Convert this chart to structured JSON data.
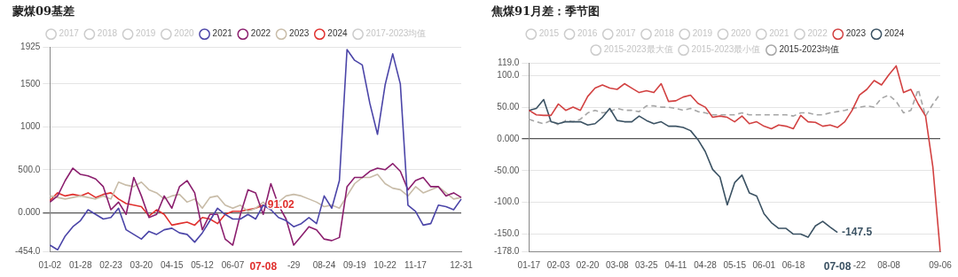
{
  "chart_data": [
    {
      "type": "line",
      "title": "蒙煤09基差",
      "legend": "top",
      "grid": "y",
      "marker": "none",
      "categories": [
        "01-02",
        null,
        null,
        null,
        "01-28",
        null,
        null,
        null,
        "02-23",
        null,
        null,
        null,
        "03-20",
        null,
        null,
        null,
        "04-15",
        null,
        null,
        null,
        "05-12",
        null,
        null,
        null,
        "06-07",
        null,
        null,
        null,
        "07-08",
        null,
        null,
        null,
        "-29",
        null,
        null,
        null,
        "08-24",
        null,
        null,
        null,
        "09-19",
        null,
        null,
        null,
        "10-22",
        null,
        null,
        null,
        "11-17",
        null,
        null,
        null,
        null,
        null,
        "12-31"
      ],
      "ylim": [
        -454,
        1925
      ],
      "yticks": [
        {
          "value": -454,
          "label": "-454.0"
        },
        {
          "value": 0,
          "label": "0.000"
        },
        {
          "value": 500,
          "label": "500.0"
        },
        1000,
        1500,
        1925
      ],
      "annotations": [
        {
          "text": "91.02",
          "x": "07-08",
          "y": 91.02
        }
      ],
      "series": [
        {
          "name": "2017",
          "color": "#cccccc",
          "values": [
            null,
            null,
            null,
            null,
            null,
            null,
            null,
            null,
            null,
            null,
            null,
            null,
            null,
            null,
            null,
            null,
            null,
            null,
            null,
            null,
            null,
            null,
            null,
            null,
            null,
            null,
            null,
            null,
            null,
            null,
            null,
            null,
            null,
            null,
            null,
            null,
            null,
            null,
            null,
            null,
            null,
            null,
            null,
            null,
            null,
            null,
            null,
            null,
            null,
            null,
            null,
            null,
            null,
            null,
            null
          ]
        },
        {
          "name": "2018",
          "color": "#cccccc",
          "values": [
            null,
            null,
            null,
            null,
            null,
            null,
            null,
            null,
            null,
            null,
            null,
            null,
            null,
            null,
            null,
            null,
            null,
            null,
            null,
            null,
            null,
            null,
            null,
            null,
            null,
            null,
            null,
            null,
            null,
            null,
            null,
            null,
            null,
            null,
            null,
            null,
            null,
            null,
            null,
            null,
            null,
            null,
            null,
            null,
            null,
            null,
            null,
            null,
            null,
            null,
            null,
            null,
            null,
            null,
            null
          ]
        },
        {
          "name": "2019",
          "color": "#cccccc",
          "values": [
            null,
            null,
            null,
            null,
            null,
            null,
            null,
            null,
            null,
            null,
            null,
            null,
            null,
            null,
            null,
            null,
            null,
            null,
            null,
            null,
            null,
            null,
            null,
            null,
            null,
            null,
            null,
            null,
            null,
            null,
            null,
            null,
            null,
            null,
            null,
            null,
            null,
            null,
            null,
            null,
            null,
            null,
            null,
            null,
            null,
            null,
            null,
            null,
            null,
            null,
            null,
            null,
            null,
            null,
            null
          ]
        },
        {
          "name": "2020",
          "color": "#cccccc",
          "values": [
            null,
            null,
            null,
            null,
            null,
            null,
            null,
            null,
            null,
            null,
            null,
            null,
            null,
            null,
            null,
            null,
            null,
            null,
            null,
            null,
            null,
            null,
            null,
            null,
            null,
            null,
            null,
            null,
            null,
            null,
            null,
            null,
            null,
            null,
            null,
            null,
            null,
            null,
            null,
            null,
            null,
            null,
            null,
            null,
            null,
            null,
            null,
            null,
            null,
            null,
            null,
            null,
            null,
            null,
            null
          ]
        },
        {
          "name": "2021",
          "color": "#4b45a8",
          "values": [
            -376,
            -430,
            -269,
            -161,
            -90,
            36,
            -18,
            -72,
            -54,
            54,
            -197,
            -251,
            -305,
            -215,
            -251,
            -197,
            -179,
            -233,
            -251,
            -341,
            -233,
            -90,
            54,
            -18,
            -72,
            -72,
            -18,
            -72,
            90,
            36,
            -54,
            -90,
            -161,
            -125,
            -54,
            -125,
            197,
            54,
            376,
            1900,
            1775,
            1721,
            1273,
            914,
            1488,
            1850,
            1500,
            90,
            18,
            -143,
            -125,
            90,
            72,
            36,
            161
          ]
        },
        {
          "name": "2022",
          "color": "#8b1f6e",
          "values": [
            125,
            197,
            376,
            520,
            448,
            430,
            394,
            305,
            36,
            125,
            -18,
            412,
            197,
            -54,
            -18,
            197,
            54,
            305,
            376,
            233,
            -197,
            -18,
            -18,
            -305,
            -376,
            -18,
            269,
            233,
            -18,
            340,
            90,
            -72,
            -376,
            -269,
            -161,
            -197,
            -305,
            -323,
            -287,
            305,
            412,
            412,
            484,
            520,
            502,
            574,
            484,
            269,
            376,
            412,
            305,
            305,
            197,
            233,
            179
          ]
        },
        {
          "name": "2023",
          "color": "#c8bca8",
          "values": [
            197,
            179,
            161,
            179,
            197,
            179,
            161,
            197,
            161,
            358,
            323,
            305,
            358,
            269,
            233,
            161,
            197,
            215,
            125,
            161,
            54,
            179,
            197,
            90,
            54,
            90,
            18,
            54,
            125,
            36,
            125,
            197,
            215,
            197,
            161,
            125,
            72,
            90,
            54,
            197,
            340,
            412,
            412,
            448,
            340,
            287,
            269,
            197,
            305,
            233,
            269,
            305,
            233,
            161,
            179
          ]
        },
        {
          "name": "2024",
          "color": "#e0302e",
          "values": [
            143,
            233,
            197,
            215,
            197,
            233,
            179,
            215,
            233,
            161,
            108,
            90,
            72,
            -36,
            36,
            -18,
            -143,
            -125,
            -108,
            -143,
            -54,
            -72,
            -125,
            -18,
            18,
            18,
            36,
            54,
            91.02,
            null,
            null,
            null,
            null,
            null,
            null,
            null,
            null,
            null,
            null,
            null,
            null,
            null,
            null,
            null,
            null,
            null,
            null,
            null,
            null,
            null,
            null,
            null,
            null,
            null,
            null
          ]
        },
        {
          "name": "2017-2023均值",
          "color": "#cccccc",
          "values": [
            null,
            null,
            null,
            null,
            null,
            null,
            null,
            null,
            null,
            null,
            null,
            null,
            null,
            null,
            null,
            null,
            null,
            null,
            null,
            null,
            null,
            null,
            null,
            null,
            null,
            null,
            null,
            null,
            null,
            null,
            null,
            null,
            null,
            null,
            null,
            null,
            null,
            null,
            null,
            null,
            null,
            null,
            null,
            null,
            null,
            null,
            null,
            null,
            null,
            null,
            null,
            null,
            null,
            null,
            null
          ]
        }
      ]
    },
    {
      "type": "line",
      "title": "焦煤91月差：季节图",
      "legend": "top",
      "grid": "y",
      "marker": "none",
      "categories": [
        "01-17",
        null,
        null,
        null,
        "02-03",
        null,
        null,
        null,
        "02-20",
        null,
        null,
        null,
        "03-08",
        null,
        null,
        null,
        "03-25",
        null,
        null,
        null,
        "04-11",
        null,
        null,
        null,
        "04-28",
        null,
        null,
        null,
        "05-15",
        null,
        null,
        null,
        "06-01",
        null,
        null,
        null,
        "06-18",
        null,
        null,
        null,
        null,
        null,
        "07-08",
        null,
        null,
        "-22",
        null,
        null,
        null,
        "08-08",
        null,
        null,
        null,
        null,
        null,
        null,
        "09-06"
      ],
      "ylim": [
        -178,
        119
      ],
      "yticks": [
        {
          "value": -178,
          "label": "-178.0"
        },
        {
          "value": -150,
          "label": "-150.0"
        },
        {
          "value": -100,
          "label": "-100.0"
        },
        {
          "value": -50,
          "label": "-50.00"
        },
        {
          "value": 0,
          "label": "0.000"
        },
        {
          "value": 50,
          "label": "50.00"
        },
        {
          "value": 100,
          "label": "100.0"
        },
        {
          "value": 119,
          "label": "119.0"
        }
      ],
      "annotations": [
        {
          "text": "-147.5",
          "x": "07-08",
          "y": -147.5
        }
      ],
      "series": [
        {
          "name": "2015",
          "color": "#cccccc",
          "values": [
            null,
            null,
            null,
            null,
            null,
            null,
            null,
            null,
            null,
            null,
            null,
            null,
            null,
            null,
            null,
            null,
            null,
            null,
            null,
            null,
            null,
            null,
            null,
            null,
            null,
            null,
            null,
            null,
            null,
            null,
            null,
            null,
            null,
            null,
            null,
            null,
            null,
            null,
            null,
            null,
            null,
            null,
            null,
            null,
            null,
            null,
            null,
            null,
            null,
            null,
            null,
            null,
            null,
            null,
            null,
            null,
            null
          ]
        },
        {
          "name": "2016",
          "color": "#cccccc",
          "values": [
            null,
            null,
            null,
            null,
            null,
            null,
            null,
            null,
            null,
            null,
            null,
            null,
            null,
            null,
            null,
            null,
            null,
            null,
            null,
            null,
            null,
            null,
            null,
            null,
            null,
            null,
            null,
            null,
            null,
            null,
            null,
            null,
            null,
            null,
            null,
            null,
            null,
            null,
            null,
            null,
            null,
            null,
            null,
            null,
            null,
            null,
            null,
            null,
            null,
            null,
            null,
            null,
            null,
            null,
            null,
            null,
            null
          ]
        },
        {
          "name": "2017",
          "color": "#cccccc",
          "values": [
            null,
            null,
            null,
            null,
            null,
            null,
            null,
            null,
            null,
            null,
            null,
            null,
            null,
            null,
            null,
            null,
            null,
            null,
            null,
            null,
            null,
            null,
            null,
            null,
            null,
            null,
            null,
            null,
            null,
            null,
            null,
            null,
            null,
            null,
            null,
            null,
            null,
            null,
            null,
            null,
            null,
            null,
            null,
            null,
            null,
            null,
            null,
            null,
            null,
            null,
            null,
            null,
            null,
            null,
            null,
            null,
            null
          ]
        },
        {
          "name": "2018",
          "color": "#cccccc",
          "values": [
            null,
            null,
            null,
            null,
            null,
            null,
            null,
            null,
            null,
            null,
            null,
            null,
            null,
            null,
            null,
            null,
            null,
            null,
            null,
            null,
            null,
            null,
            null,
            null,
            null,
            null,
            null,
            null,
            null,
            null,
            null,
            null,
            null,
            null,
            null,
            null,
            null,
            null,
            null,
            null,
            null,
            null,
            null,
            null,
            null,
            null,
            null,
            null,
            null,
            null,
            null,
            null,
            null,
            null,
            null,
            null,
            null
          ]
        },
        {
          "name": "2019",
          "color": "#cccccc",
          "values": [
            null,
            null,
            null,
            null,
            null,
            null,
            null,
            null,
            null,
            null,
            null,
            null,
            null,
            null,
            null,
            null,
            null,
            null,
            null,
            null,
            null,
            null,
            null,
            null,
            null,
            null,
            null,
            null,
            null,
            null,
            null,
            null,
            null,
            null,
            null,
            null,
            null,
            null,
            null,
            null,
            null,
            null,
            null,
            null,
            null,
            null,
            null,
            null,
            null,
            null,
            null,
            null,
            null,
            null,
            null,
            null,
            null
          ]
        },
        {
          "name": "2020",
          "color": "#cccccc",
          "values": [
            null,
            null,
            null,
            null,
            null,
            null,
            null,
            null,
            null,
            null,
            null,
            null,
            null,
            null,
            null,
            null,
            null,
            null,
            null,
            null,
            null,
            null,
            null,
            null,
            null,
            null,
            null,
            null,
            null,
            null,
            null,
            null,
            null,
            null,
            null,
            null,
            null,
            null,
            null,
            null,
            null,
            null,
            null,
            null,
            null,
            null,
            null,
            null,
            null,
            null,
            null,
            null,
            null,
            null,
            null,
            null,
            null
          ]
        },
        {
          "name": "2021",
          "color": "#cccccc",
          "values": [
            null,
            null,
            null,
            null,
            null,
            null,
            null,
            null,
            null,
            null,
            null,
            null,
            null,
            null,
            null,
            null,
            null,
            null,
            null,
            null,
            null,
            null,
            null,
            null,
            null,
            null,
            null,
            null,
            null,
            null,
            null,
            null,
            null,
            null,
            null,
            null,
            null,
            null,
            null,
            null,
            null,
            null,
            null,
            null,
            null,
            null,
            null,
            null,
            null,
            null,
            null,
            null,
            null,
            null,
            null,
            null,
            null
          ]
        },
        {
          "name": "2022",
          "color": "#cccccc",
          "values": [
            null,
            null,
            null,
            null,
            null,
            null,
            null,
            null,
            null,
            null,
            null,
            null,
            null,
            null,
            null,
            null,
            null,
            null,
            null,
            null,
            null,
            null,
            null,
            null,
            null,
            null,
            null,
            null,
            null,
            null,
            null,
            null,
            null,
            null,
            null,
            null,
            null,
            null,
            null,
            null,
            null,
            null,
            null,
            null,
            null,
            null,
            null,
            null,
            null,
            null,
            null,
            null,
            null,
            null,
            null,
            null,
            null
          ]
        },
        {
          "name": "2023",
          "color": "#d24141",
          "values": [
            45,
            38,
            37,
            37,
            55,
            45,
            50,
            45,
            67,
            80,
            85,
            80,
            78,
            87,
            80,
            73,
            76,
            73,
            87,
            59,
            60,
            66,
            69,
            56,
            50,
            34,
            36,
            34,
            27,
            36,
            24,
            27,
            20,
            16,
            22,
            20,
            16,
            37,
            27,
            26,
            20,
            22,
            18,
            27,
            45,
            69,
            78,
            92,
            85,
            101,
            115,
            73,
            78,
            55,
            36,
            -45,
            -178
          ]
        },
        {
          "name": "2024",
          "color": "#3b5263",
          "values": [
            45,
            48,
            62,
            27,
            24,
            27,
            27,
            27,
            22,
            24,
            34,
            48,
            29,
            27,
            27,
            36,
            29,
            24,
            27,
            20,
            20,
            18,
            13,
            -1,
            -20,
            -48,
            -60,
            -104,
            -69,
            -57,
            -85,
            -90,
            -118,
            -132,
            -141,
            -141,
            -150,
            -150,
            -155,
            -137,
            -130,
            -139,
            -147.5,
            null,
            null,
            null,
            null,
            null,
            null,
            null,
            null,
            null,
            null,
            null,
            null,
            null,
            null
          ]
        },
        {
          "name": "2015-2023最大值",
          "color": "#cccccc",
          "values": [
            null,
            null,
            null,
            null,
            null,
            null,
            null,
            null,
            null,
            null,
            null,
            null,
            null,
            null,
            null,
            null,
            null,
            null,
            null,
            null,
            null,
            null,
            null,
            null,
            null,
            null,
            null,
            null,
            null,
            null,
            null,
            null,
            null,
            null,
            null,
            null,
            null,
            null,
            null,
            null,
            null,
            null,
            null,
            null,
            null,
            null,
            null,
            null,
            null,
            null,
            null,
            null,
            null,
            null,
            null,
            null,
            null
          ]
        },
        {
          "name": "2015-2023最小值",
          "color": "#cccccc",
          "values": [
            null,
            null,
            null,
            null,
            null,
            null,
            null,
            null,
            null,
            null,
            null,
            null,
            null,
            null,
            null,
            null,
            null,
            null,
            null,
            null,
            null,
            null,
            null,
            null,
            null,
            null,
            null,
            null,
            null,
            null,
            null,
            null,
            null,
            null,
            null,
            null,
            null,
            null,
            null,
            null,
            null,
            null,
            null,
            null,
            null,
            null,
            null,
            null,
            null,
            null,
            null,
            null,
            null,
            null,
            null,
            null,
            null
          ]
        },
        {
          "name": "2015-2023均值",
          "color": "#a6a6a6",
          "line_style": "dashed",
          "values": [
            31,
            27,
            24,
            29,
            22,
            29,
            27,
            31,
            41,
            45,
            41,
            43,
            48,
            45,
            45,
            43,
            52,
            52,
            50,
            50,
            48,
            45,
            48,
            43,
            41,
            38,
            38,
            38,
            38,
            41,
            38,
            38,
            38,
            38,
            38,
            38,
            36,
            41,
            41,
            38,
            38,
            41,
            43,
            45,
            48,
            50,
            52,
            50,
            64,
            69,
            59,
            41,
            45,
            78,
            36,
            55,
            71
          ]
        }
      ]
    }
  ]
}
